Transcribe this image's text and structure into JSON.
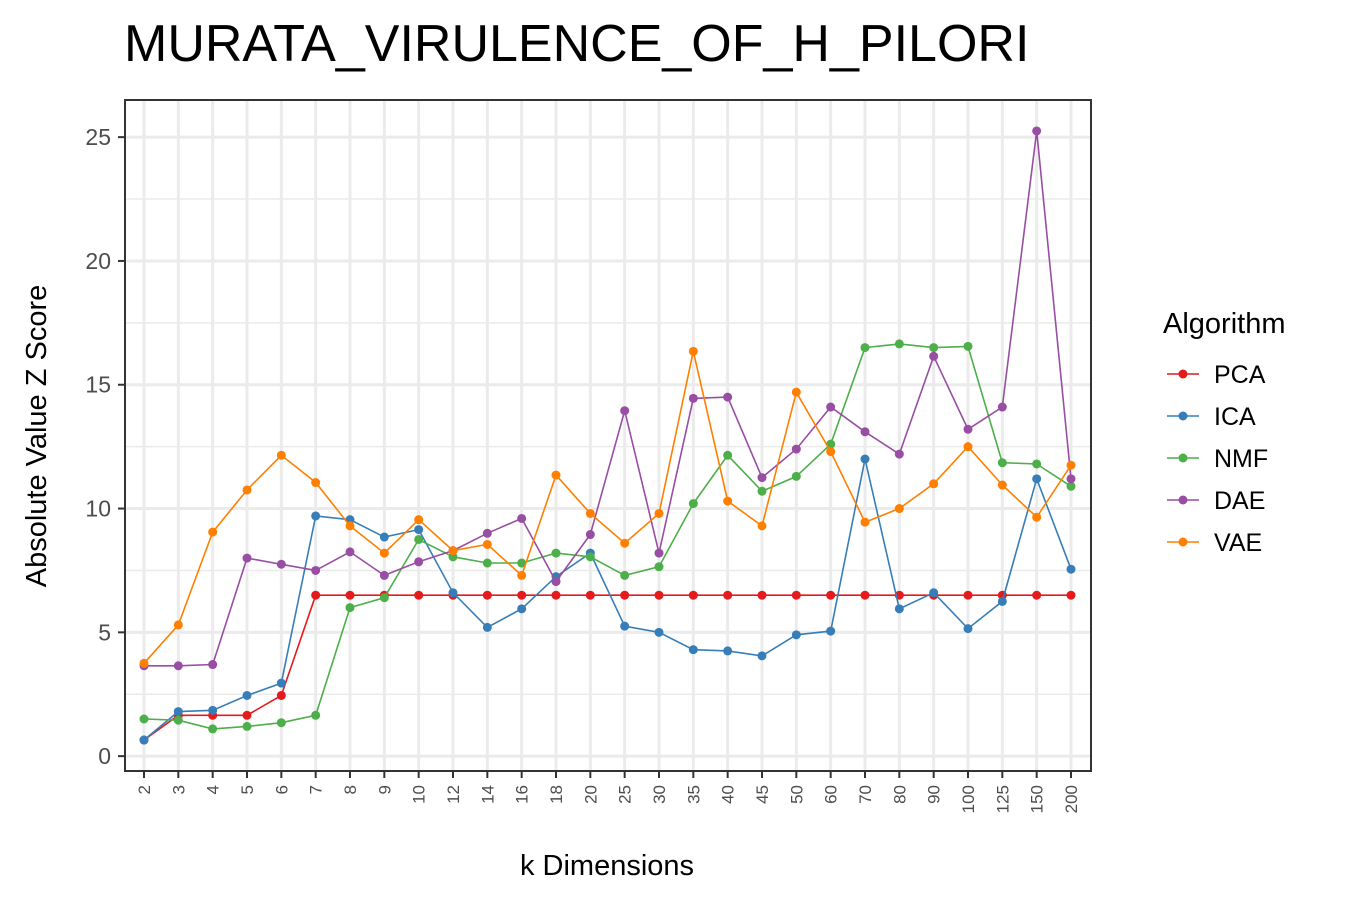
{
  "chart_data": {
    "type": "line",
    "title": "MURATA_VIRULENCE_OF_H_PILORI",
    "xlabel": "k Dimensions",
    "ylabel": "Absolute Value Z Score",
    "ylim": [
      -0.6,
      26.5
    ],
    "yticks": [
      0,
      5,
      10,
      15,
      20,
      25
    ],
    "grid": true,
    "legend_title": "Algorithm",
    "legend_position": "right",
    "categories": [
      "2",
      "3",
      "4",
      "5",
      "6",
      "7",
      "8",
      "9",
      "10",
      "12",
      "14",
      "16",
      "18",
      "20",
      "25",
      "30",
      "35",
      "40",
      "45",
      "50",
      "60",
      "70",
      "80",
      "90",
      "100",
      "125",
      "150",
      "200"
    ],
    "series": [
      {
        "name": "PCA",
        "color": "#e41a1c",
        "values": [
          0.65,
          1.65,
          1.65,
          1.65,
          2.45,
          6.5,
          6.5,
          6.5,
          6.5,
          6.5,
          6.5,
          6.5,
          6.5,
          6.5,
          6.5,
          6.5,
          6.5,
          6.5,
          6.5,
          6.5,
          6.5,
          6.5,
          6.5,
          6.5,
          6.5,
          6.5,
          6.5,
          6.5
        ]
      },
      {
        "name": "ICA",
        "color": "#377eb8",
        "values": [
          0.65,
          1.8,
          1.85,
          2.45,
          2.95,
          9.7,
          9.55,
          8.85,
          9.15,
          6.6,
          5.2,
          5.95,
          7.25,
          8.2,
          5.25,
          5.0,
          4.3,
          4.25,
          4.05,
          4.9,
          5.05,
          12.0,
          5.95,
          6.6,
          5.15,
          6.25,
          11.2,
          7.55
        ]
      },
      {
        "name": "NMF",
        "color": "#4daf4a",
        "values": [
          1.5,
          1.45,
          1.1,
          1.2,
          1.35,
          1.65,
          6.0,
          6.4,
          8.75,
          8.05,
          7.8,
          7.8,
          8.2,
          8.05,
          7.3,
          7.65,
          10.2,
          12.15,
          10.7,
          11.3,
          12.6,
          16.5,
          16.65,
          16.5,
          16.55,
          11.85,
          11.8,
          10.9
        ]
      },
      {
        "name": "DAE",
        "color": "#984ea3",
        "values": [
          3.65,
          3.65,
          3.7,
          8.0,
          7.75,
          7.5,
          8.25,
          7.3,
          7.85,
          8.3,
          9.0,
          9.6,
          7.05,
          8.95,
          13.95,
          8.2,
          14.45,
          14.5,
          11.25,
          12.4,
          14.1,
          13.1,
          12.2,
          16.15,
          13.2,
          14.1,
          25.25,
          11.2
        ]
      },
      {
        "name": "VAE",
        "color": "#ff7f00",
        "values": [
          3.75,
          5.3,
          9.05,
          10.75,
          12.15,
          11.05,
          9.3,
          8.2,
          9.55,
          8.3,
          8.55,
          7.3,
          11.35,
          9.8,
          8.6,
          9.8,
          16.35,
          10.3,
          9.3,
          14.7,
          12.3,
          9.45,
          10.0,
          11.0,
          12.5,
          10.95,
          9.65,
          11.75
        ]
      }
    ]
  }
}
